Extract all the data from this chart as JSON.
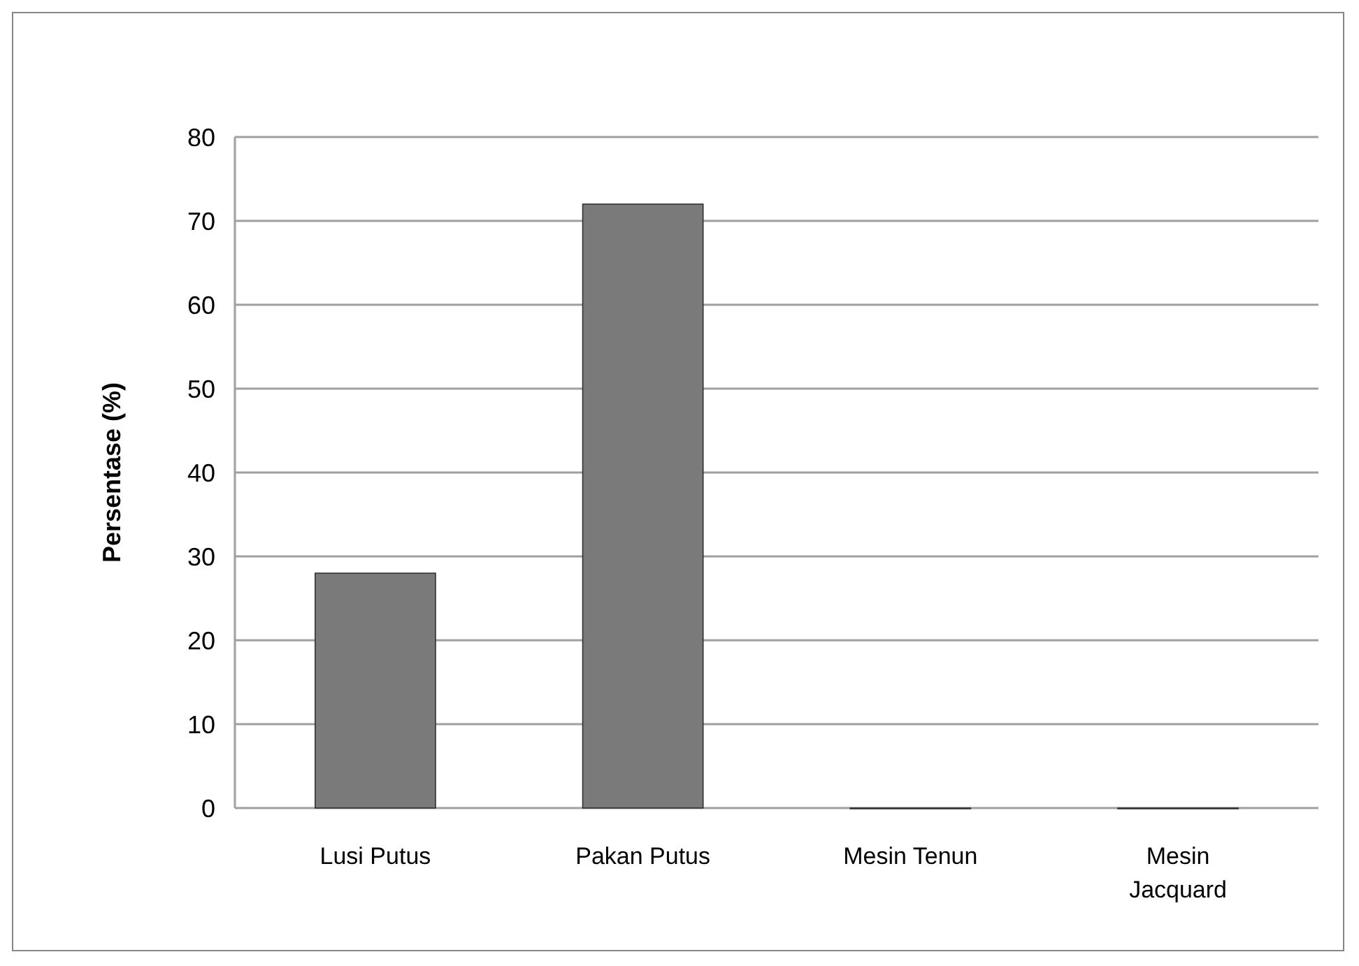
{
  "chart_data": {
    "type": "bar",
    "ylabel": "Persentase (%)",
    "categories": [
      "Lusi Putus",
      "Pakan Putus",
      "Mesin Tenun",
      "Mesin Jacquard"
    ],
    "values": [
      28,
      72,
      0,
      0
    ],
    "color": "#7a7a7a",
    "ylim": [
      0,
      80
    ],
    "yticks": [
      0,
      10,
      20,
      30,
      40,
      50,
      60,
      70,
      80
    ],
    "grid": "y"
  }
}
